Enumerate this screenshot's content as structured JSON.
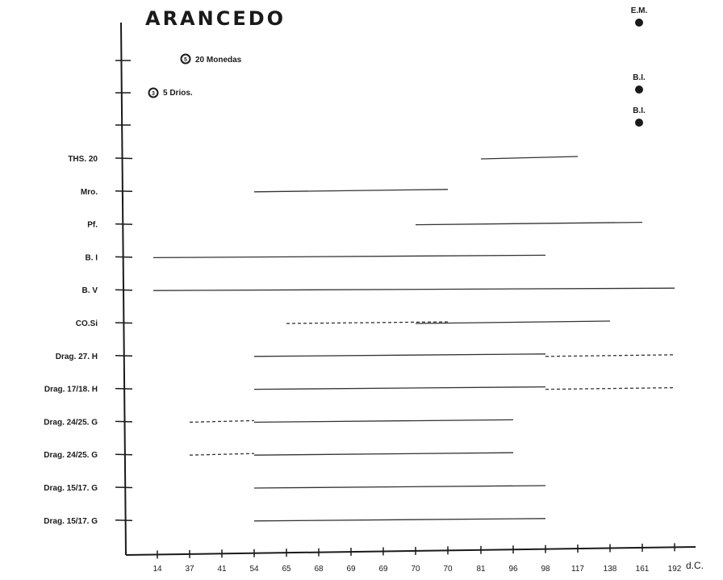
{
  "chart_data": {
    "type": "range",
    "title": "ARANCEDO",
    "x_unit": "d.C.",
    "x_ticks": [
      "14",
      "37",
      "41",
      "54",
      "65",
      "68",
      "69",
      "69",
      "70",
      "70",
      "81",
      "96",
      "98",
      "117",
      "138",
      "161",
      "192"
    ],
    "legend": [
      {
        "marker": "5",
        "label": "20 Monedas"
      },
      {
        "marker": "3",
        "label": "5 Drios."
      }
    ],
    "points": [
      {
        "label": "E.M.",
        "x": "161"
      },
      {
        "label": "B.I.",
        "x": "161"
      },
      {
        "label": "B.I.",
        "x": "161"
      }
    ],
    "rows": [
      {
        "label": "THS. 20",
        "solid": [
          [
            "81",
            "117"
          ]
        ],
        "dashed": []
      },
      {
        "label": "Mro.",
        "solid": [
          [
            "54",
            "70"
          ]
        ],
        "dashed": []
      },
      {
        "label": "Pf.",
        "solid": [
          [
            "70",
            "161"
          ]
        ],
        "dashed": []
      },
      {
        "label": "B. I",
        "solid": [
          [
            "14",
            "98"
          ]
        ],
        "dashed": []
      },
      {
        "label": "B. V",
        "solid": [
          [
            "14",
            "192"
          ]
        ],
        "dashed": []
      },
      {
        "label": "CO.Si",
        "solid": [
          [
            "70",
            "138"
          ]
        ],
        "dashed": [
          [
            "65",
            "70"
          ]
        ]
      },
      {
        "label": "Drag. 27. H",
        "solid": [
          [
            "54",
            "98"
          ]
        ],
        "dashed": [
          [
            "98",
            "192"
          ]
        ]
      },
      {
        "label": "Drag. 17/18. H",
        "solid": [
          [
            "54",
            "98"
          ]
        ],
        "dashed": [
          [
            "98",
            "192"
          ]
        ]
      },
      {
        "label": "Drag. 24/25. G",
        "solid": [
          [
            "54",
            "96"
          ]
        ],
        "dashed": [
          [
            "37",
            "54"
          ]
        ]
      },
      {
        "label": "Drag. 24/25. G",
        "solid": [
          [
            "54",
            "96"
          ]
        ],
        "dashed": [
          [
            "37",
            "54"
          ]
        ]
      },
      {
        "label": "Drag. 15/17. G",
        "solid": [
          [
            "54",
            "98"
          ]
        ],
        "dashed": []
      },
      {
        "label": "Drag. 15/17. G",
        "solid": [
          [
            "54",
            "98"
          ]
        ],
        "dashed": []
      }
    ]
  }
}
